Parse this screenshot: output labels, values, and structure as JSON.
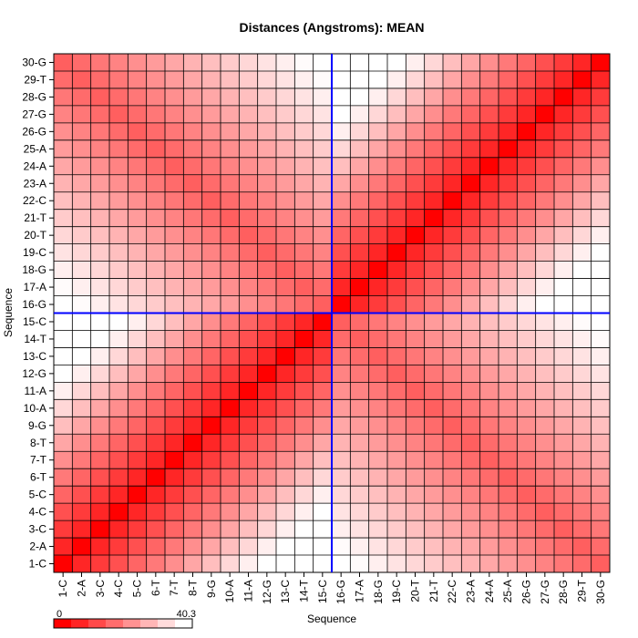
{
  "chart_data": {
    "type": "heatmap",
    "title": "Distances (Angstroms):  MEAN",
    "xlabel": "Sequence",
    "ylabel": "Sequence",
    "labels": [
      "1-C",
      "2-A",
      "3-C",
      "4-C",
      "5-C",
      "6-T",
      "7-T",
      "8-T",
      "9-G",
      "10-A",
      "11-A",
      "12-G",
      "13-C",
      "14-T",
      "15-C",
      "16-G",
      "17-A",
      "18-G",
      "19-C",
      "20-T",
      "21-T",
      "22-C",
      "23-A",
      "24-A",
      "25-A",
      "26-G",
      "27-G",
      "28-G",
      "29-T",
      "30-G"
    ],
    "value_range": [
      0,
      40.3
    ],
    "legend": {
      "min_label": "0",
      "max_label": "40.3"
    },
    "color_low": "#ff0000",
    "color_high": "#ffffff",
    "marker_color": "#0000ff",
    "marker_between": [
      "15-C",
      "16-G"
    ],
    "grid": true
  }
}
